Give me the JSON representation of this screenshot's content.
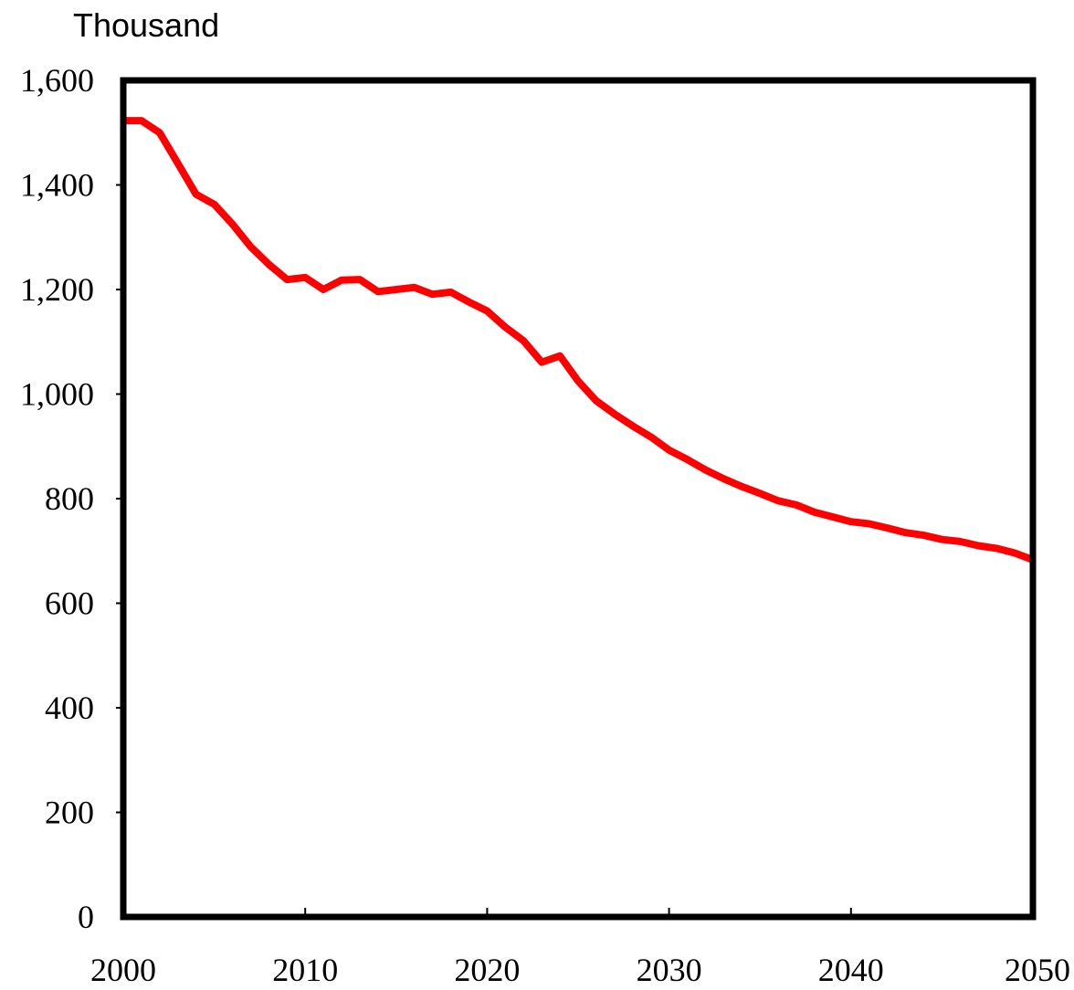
{
  "chart_data": {
    "type": "line",
    "y_unit_label": "Thousand",
    "xlim": [
      2000,
      2050
    ],
    "ylim": [
      0,
      1600
    ],
    "x_ticks": [
      2000,
      2010,
      2020,
      2030,
      2040,
      2050
    ],
    "x_tick_labels": [
      "2000",
      "2010",
      "2020",
      "2030",
      "2040",
      "2050"
    ],
    "y_ticks": [
      0,
      200,
      400,
      600,
      800,
      1000,
      1200,
      1400,
      1600
    ],
    "y_tick_labels": [
      "0",
      "200",
      "400",
      "600",
      "800",
      "1,000",
      "1,200",
      "1,400",
      "1,600"
    ],
    "grid": false,
    "legend": "none",
    "series": [
      {
        "color": "#ff0000",
        "x": [
          2000,
          2001,
          2002,
          2003,
          2004,
          2005,
          2006,
          2007,
          2008,
          2009,
          2010,
          2011,
          2012,
          2013,
          2014,
          2015,
          2016,
          2017,
          2018,
          2019,
          2020,
          2021,
          2022,
          2023,
          2024,
          2025,
          2026,
          2027,
          2028,
          2029,
          2030,
          2031,
          2032,
          2033,
          2034,
          2035,
          2036,
          2037,
          2038,
          2039,
          2040,
          2041,
          2042,
          2043,
          2044,
          2045,
          2046,
          2047,
          2048,
          2049,
          2050
        ],
        "values": [
          1523,
          1523,
          1500,
          1441,
          1382,
          1363,
          1325,
          1282,
          1248,
          1219,
          1223,
          1200,
          1218,
          1219,
          1196,
          1200,
          1204,
          1191,
          1195,
          1176,
          1159,
          1128,
          1102,
          1061,
          1073,
          1025,
          987,
          962,
          939,
          918,
          893,
          875,
          855,
          838,
          823,
          810,
          796,
          788,
          774,
          765,
          756,
          752,
          744,
          735,
          730,
          722,
          718,
          710,
          705,
          696,
          683
        ]
      }
    ]
  }
}
